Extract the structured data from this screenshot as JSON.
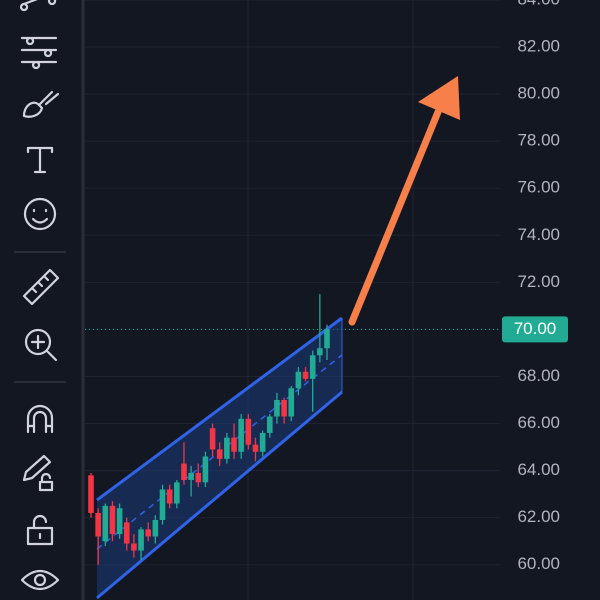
{
  "chart_data": {
    "type": "candlestick",
    "series": [
      {
        "open": [
          63.8,
          62.2,
          61.0,
          62.5,
          61.3,
          61.8,
          60.9,
          60.6,
          61.5,
          61.2,
          61.9,
          63.2,
          62.6,
          64.3,
          63.6,
          63.9,
          63.5,
          65.8,
          64.9,
          64.5,
          65.4,
          64.8,
          66.2,
          65.1,
          64.8,
          65.6,
          66.3,
          67.0,
          66.3,
          67.5,
          68.2,
          67.9,
          68.9,
          69.2
        ],
        "high": [
          63.9,
          62.4,
          62.6,
          62.7,
          62.6,
          62.0,
          61.3,
          61.6,
          61.8,
          62.1,
          63.4,
          63.4,
          63.6,
          65.2,
          64.2,
          64.3,
          64.8,
          66.0,
          65.2,
          65.6,
          66.0,
          66.4,
          66.4,
          65.4,
          65.7,
          66.4,
          67.3,
          67.1,
          67.6,
          68.4,
          68.4,
          69.1,
          71.5,
          70.2
        ],
        "low": [
          62.0,
          60.0,
          60.8,
          61.0,
          61.1,
          60.6,
          60.3,
          60.2,
          61.0,
          60.9,
          61.7,
          62.4,
          62.4,
          63.4,
          62.9,
          63.3,
          63.3,
          64.6,
          64.2,
          64.3,
          64.5,
          64.5,
          64.9,
          64.4,
          64.6,
          65.4,
          66.0,
          66.0,
          66.1,
          67.2,
          67.8,
          66.5,
          68.6,
          68.7
        ],
        "close": [
          62.2,
          61.2,
          62.5,
          61.3,
          62.4,
          60.9,
          60.6,
          61.5,
          61.2,
          61.9,
          63.2,
          62.6,
          63.5,
          63.6,
          63.9,
          63.5,
          64.6,
          64.9,
          64.5,
          65.4,
          64.8,
          66.2,
          65.1,
          64.8,
          65.6,
          66.3,
          67.0,
          66.3,
          67.5,
          68.2,
          67.9,
          68.9,
          69.2,
          70.0
        ]
      }
    ],
    "up_color": "#22ab94",
    "down_color": "#f23645",
    "ylim": [
      58.5,
      84.0
    ],
    "yticks": [
      {
        "value": 60,
        "label": "60.00"
      },
      {
        "value": 62,
        "label": "62.00"
      },
      {
        "value": 64,
        "label": "64.00"
      },
      {
        "value": 66,
        "label": "66.00"
      },
      {
        "value": 68,
        "label": "68.00"
      },
      {
        "value": 70,
        "label": "70.00"
      },
      {
        "value": 72,
        "label": "72.00"
      },
      {
        "value": 74,
        "label": "74.00"
      },
      {
        "value": 76,
        "label": "76.00"
      },
      {
        "value": 78,
        "label": "78.00"
      },
      {
        "value": 80,
        "label": "80.00"
      },
      {
        "value": 82,
        "label": "82.00"
      },
      {
        "value": 84,
        "label": "84.00"
      }
    ],
    "last_price": {
      "value": 70,
      "label": "70.00"
    },
    "grid": true
  }
}
